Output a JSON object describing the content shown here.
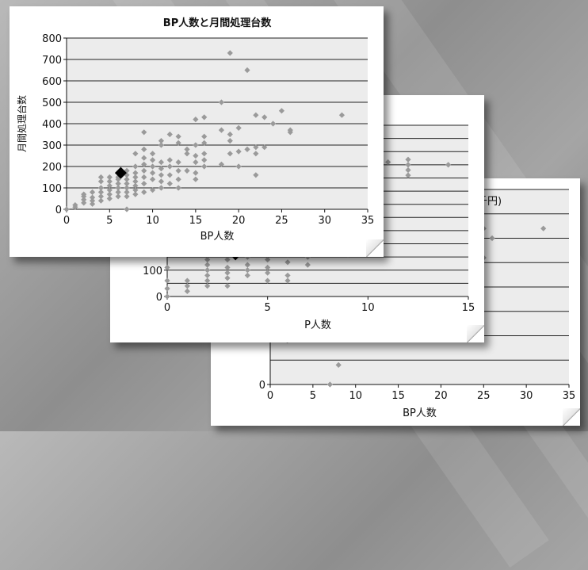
{
  "colors": {
    "point": "#9a9a9a",
    "highlight": "#000000",
    "plot_bg": "#ececec",
    "grid": "#222222"
  },
  "chart_data": [
    {
      "type": "scatter",
      "title": "BP人数と月間処理台数",
      "xlabel": "BP人数",
      "ylabel": "月間処理台数",
      "xlim": [
        0,
        35
      ],
      "ylim": [
        0,
        800
      ],
      "xticks": [
        "0",
        "5",
        "10",
        "15",
        "20",
        "25",
        "30",
        "35"
      ],
      "yticks": [
        "0",
        "100",
        "200",
        "300",
        "400",
        "500",
        "600",
        "700",
        "800"
      ],
      "grid": true,
      "points": [
        [
          0,
          0
        ],
        [
          1,
          10
        ],
        [
          1,
          20
        ],
        [
          2,
          30
        ],
        [
          2,
          45
        ],
        [
          2,
          60
        ],
        [
          2,
          70
        ],
        [
          3,
          25
        ],
        [
          3,
          40
        ],
        [
          3,
          55
        ],
        [
          3,
          80
        ],
        [
          4,
          40
        ],
        [
          4,
          60
        ],
        [
          4,
          80
        ],
        [
          4,
          100
        ],
        [
          4,
          130
        ],
        [
          4,
          150
        ],
        [
          5,
          50
        ],
        [
          5,
          70
        ],
        [
          5,
          90
        ],
        [
          5,
          110
        ],
        [
          5,
          130
        ],
        [
          5,
          150
        ],
        [
          6,
          60
        ],
        [
          6,
          80
        ],
        [
          6,
          100
        ],
        [
          6,
          120
        ],
        [
          6,
          140
        ],
        [
          6,
          150
        ],
        [
          7,
          0
        ],
        [
          7,
          60
        ],
        [
          7,
          80
        ],
        [
          7,
          100
        ],
        [
          7,
          120
        ],
        [
          7,
          140
        ],
        [
          7,
          160
        ],
        [
          7,
          180
        ],
        [
          8,
          70
        ],
        [
          8,
          90
        ],
        [
          8,
          110
        ],
        [
          8,
          130
        ],
        [
          8,
          150
        ],
        [
          8,
          170
        ],
        [
          8,
          200
        ],
        [
          8,
          260
        ],
        [
          9,
          80
        ],
        [
          9,
          120
        ],
        [
          9,
          150
        ],
        [
          9,
          180
        ],
        [
          9,
          210
        ],
        [
          9,
          240
        ],
        [
          9,
          280
        ],
        [
          9,
          360
        ],
        [
          10,
          90
        ],
        [
          10,
          140
        ],
        [
          10,
          170
        ],
        [
          10,
          200
        ],
        [
          10,
          230
        ],
        [
          10,
          260
        ],
        [
          11,
          100
        ],
        [
          11,
          130
        ],
        [
          11,
          160
        ],
        [
          11,
          190
        ],
        [
          11,
          220
        ],
        [
          11,
          300
        ],
        [
          11,
          320
        ],
        [
          12,
          120
        ],
        [
          12,
          160
        ],
        [
          12,
          200
        ],
        [
          12,
          230
        ],
        [
          12,
          350
        ],
        [
          13,
          100
        ],
        [
          13,
          140
        ],
        [
          13,
          180
        ],
        [
          13,
          220
        ],
        [
          13,
          310
        ],
        [
          13,
          340
        ],
        [
          14,
          180
        ],
        [
          14,
          260
        ],
        [
          14,
          280
        ],
        [
          15,
          140
        ],
        [
          15,
          170
        ],
        [
          15,
          220
        ],
        [
          15,
          250
        ],
        [
          15,
          300
        ],
        [
          15,
          420
        ],
        [
          16,
          200
        ],
        [
          16,
          230
        ],
        [
          16,
          260
        ],
        [
          16,
          310
        ],
        [
          16,
          340
        ],
        [
          16,
          430
        ],
        [
          18,
          210
        ],
        [
          18,
          370
        ],
        [
          18,
          500
        ],
        [
          19,
          260
        ],
        [
          19,
          320
        ],
        [
          19,
          350
        ],
        [
          19,
          730
        ],
        [
          20,
          200
        ],
        [
          20,
          270
        ],
        [
          20,
          380
        ],
        [
          21,
          280
        ],
        [
          21,
          650
        ],
        [
          22,
          160
        ],
        [
          22,
          260
        ],
        [
          22,
          290
        ],
        [
          22,
          440
        ],
        [
          23,
          290
        ],
        [
          23,
          430
        ],
        [
          24,
          400
        ],
        [
          25,
          460
        ],
        [
          26,
          360
        ],
        [
          26,
          370
        ],
        [
          32,
          440
        ]
      ],
      "highlight": [
        6.3,
        170
      ]
    },
    {
      "type": "scatter",
      "xlabel": "P人数",
      "xlim": [
        0,
        15
      ],
      "xticks": [
        "0",
        "5",
        "10",
        "15"
      ],
      "yticks": [
        "0",
        "100"
      ],
      "grid": true,
      "points": [
        [
          0,
          0
        ],
        [
          0,
          30
        ],
        [
          0,
          60
        ],
        [
          0,
          110
        ],
        [
          1,
          20
        ],
        [
          1,
          40
        ],
        [
          1,
          60
        ],
        [
          2,
          40
        ],
        [
          2,
          60
        ],
        [
          2,
          80
        ],
        [
          2,
          100
        ],
        [
          2,
          120
        ],
        [
          2,
          140
        ],
        [
          2,
          160
        ],
        [
          2,
          180
        ],
        [
          2,
          200
        ],
        [
          2,
          220
        ],
        [
          3,
          40
        ],
        [
          3,
          70
        ],
        [
          3,
          90
        ],
        [
          3,
          110
        ],
        [
          3,
          140
        ],
        [
          3,
          160
        ],
        [
          3,
          180
        ],
        [
          3,
          200
        ],
        [
          3,
          220
        ],
        [
          4,
          80
        ],
        [
          4,
          100
        ],
        [
          4,
          120
        ],
        [
          4,
          150
        ],
        [
          4,
          170
        ],
        [
          4,
          190
        ],
        [
          4,
          210
        ],
        [
          4,
          230
        ],
        [
          5,
          60
        ],
        [
          5,
          90
        ],
        [
          5,
          110
        ],
        [
          5,
          140
        ],
        [
          5,
          180
        ],
        [
          5,
          210
        ],
        [
          5,
          230
        ],
        [
          6,
          60
        ],
        [
          6,
          80
        ],
        [
          6,
          130
        ],
        [
          6,
          160
        ],
        [
          6,
          200
        ],
        [
          6,
          220
        ],
        [
          7,
          120
        ],
        [
          7,
          150
        ],
        [
          7,
          190
        ],
        [
          9,
          160
        ],
        [
          11,
          510
        ],
        [
          12,
          460
        ],
        [
          12,
          480
        ],
        [
          12,
          500
        ],
        [
          12,
          520
        ],
        [
          14,
          500
        ]
      ],
      "highlight": [
        3.4,
        160
      ]
    },
    {
      "type": "scatter",
      "title_fragment": "千円)",
      "xlabel": "BP人数",
      "xlim": [
        0,
        35
      ],
      "xticks": [
        "0",
        "5",
        "10",
        "15",
        "20",
        "25",
        "30",
        "35"
      ],
      "yticks": [
        "0",
        "500"
      ],
      "grid": true,
      "points": [
        [
          1,
          750
        ],
        [
          2,
          750
        ],
        [
          2,
          600
        ],
        [
          2,
          450
        ],
        [
          3,
          750
        ],
        [
          3,
          650
        ],
        [
          4,
          750
        ],
        [
          4,
          700
        ],
        [
          4,
          550
        ],
        [
          5,
          800
        ],
        [
          5,
          750
        ],
        [
          5,
          600
        ],
        [
          6,
          780
        ],
        [
          6,
          700
        ],
        [
          6,
          600
        ],
        [
          7,
          0
        ],
        [
          7,
          750
        ],
        [
          7,
          650
        ],
        [
          7,
          550
        ],
        [
          8,
          750
        ],
        [
          8,
          600
        ],
        [
          8,
          200
        ],
        [
          9,
          720
        ],
        [
          10,
          780
        ],
        [
          10,
          650
        ],
        [
          11,
          750
        ],
        [
          12,
          760
        ],
        [
          13,
          700
        ],
        [
          25,
          1600
        ],
        [
          25,
          1300
        ],
        [
          26,
          1500
        ],
        [
          32,
          1600
        ]
      ]
    }
  ]
}
